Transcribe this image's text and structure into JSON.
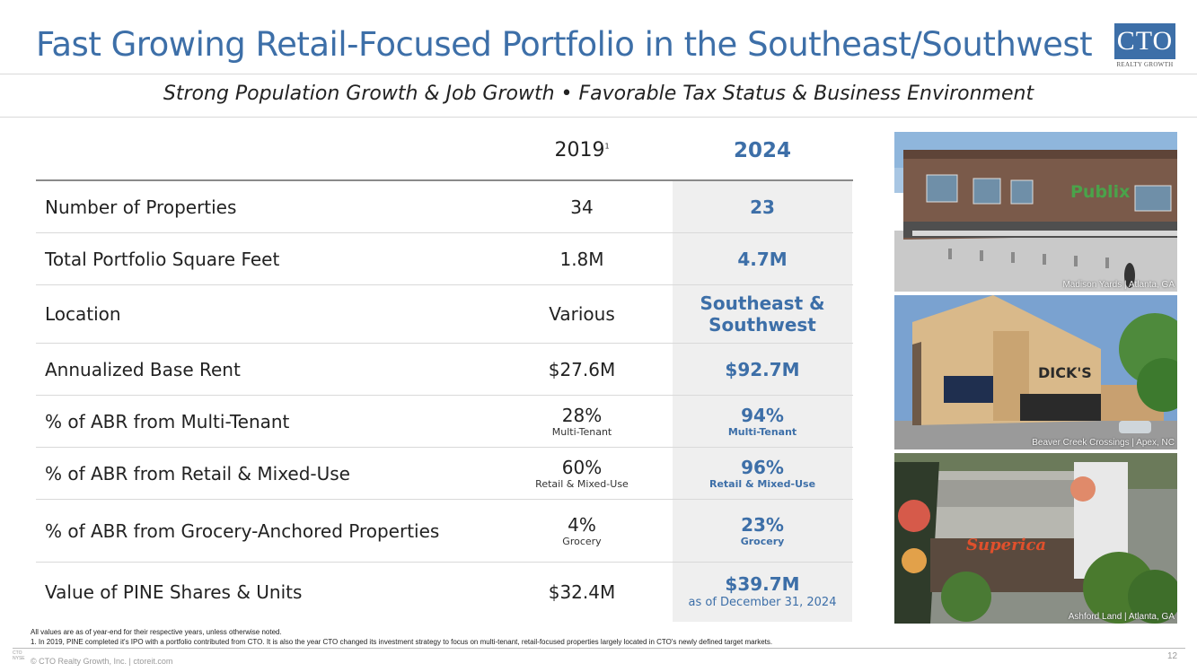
{
  "header": {
    "title": "Fast Growing Retail-Focused Portfolio in the Southeast/Southwest",
    "logo_text": "CTO",
    "logo_sub": "REALTY GROWTH",
    "subtitle": "Strong Population Growth & Job Growth • Favorable Tax Status & Business Environment"
  },
  "table": {
    "col_2019": "2019",
    "col_2019_note": "1",
    "col_2024": "2024",
    "rows": [
      {
        "label": "Number of Properties",
        "v2019": "34",
        "v2024": "23"
      },
      {
        "label": "Total Portfolio Square Feet",
        "v2019": "1.8M",
        "v2024": "4.7M"
      },
      {
        "label": "Location",
        "v2019": "Various",
        "v2024_line1": "Southeast &",
        "v2024_line2": "Southwest"
      },
      {
        "label": "Annualized Base Rent",
        "v2019": "$27.6M",
        "v2024": "$92.7M"
      },
      {
        "label": "% of ABR from Multi-Tenant",
        "v2019": "28%",
        "v2019_sub": "Multi-Tenant",
        "v2024": "94%",
        "v2024_sub": "Multi-Tenant"
      },
      {
        "label": "% of ABR from Retail & Mixed-Use",
        "v2019": "60%",
        "v2019_sub": "Retail & Mixed-Use",
        "v2024": "96%",
        "v2024_sub": "Retail & Mixed-Use"
      },
      {
        "label": "% of ABR from Grocery-Anchored Properties",
        "v2019": "4%",
        "v2019_sub": "Grocery",
        "v2024": "23%",
        "v2024_sub": "Grocery"
      },
      {
        "label": "Value of PINE Shares & Units",
        "v2019": "$32.4M",
        "v2024": "$39.7M",
        "v2024_sub": "as of December 31, 2024"
      }
    ]
  },
  "photos": [
    {
      "caption": "Madison Yards | Atlanta, GA",
      "sign": "Publix"
    },
    {
      "caption": "Beaver Creek Crossings | Apex, NC",
      "sign": "DICK'S"
    },
    {
      "caption": "Ashford Land | Atlanta, GA",
      "sign": "Superica"
    }
  ],
  "footer": {
    "note_all": "All values are as of year-end for their respective years, unless otherwise noted.",
    "note_1": "1.     In 2019, PINE completed it's IPO with a portfolio contributed from CTO.  It is also the year CTO changed its investment strategy to focus on multi-tenant, retail-focused properties largely located in CTO's newly defined target markets.",
    "ticker_small": "CTO",
    "exchange_small": "NYSE",
    "copyright": "© CTO Realty Growth, Inc. | ctoreit.com",
    "page": "12"
  }
}
